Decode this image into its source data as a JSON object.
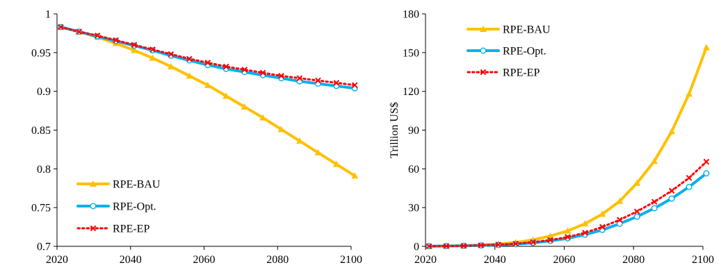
{
  "colors": {
    "bau": "#FFC000",
    "opt": "#00B0F0",
    "ep": "#FF0000"
  },
  "chart_data": [
    {
      "type": "line",
      "title": "",
      "xlabel": "",
      "ylabel": "",
      "xlim": [
        2020,
        2100
      ],
      "ylim": [
        0.7,
        1
      ],
      "xticks": [
        "2020",
        "2040",
        "2060",
        "2080",
        "2100"
      ],
      "yticks": [
        "0.7",
        "0.75",
        "0.8",
        "0.85",
        "0.9",
        "0.95",
        "1"
      ],
      "legend_position": "bottom-left",
      "grid": false,
      "x": [
        2021,
        2026,
        2031,
        2036,
        2041,
        2046,
        2051,
        2056,
        2061,
        2066,
        2071,
        2076,
        2081,
        2086,
        2091,
        2096,
        2101
      ],
      "series": [
        {
          "name": "RPE-BAU",
          "marker": "triangle",
          "values": [
            0.983,
            0.977,
            0.97,
            0.962,
            0.953,
            0.943,
            0.932,
            0.92,
            0.908,
            0.894,
            0.88,
            0.866,
            0.851,
            0.836,
            0.821,
            0.806,
            0.791
          ]
        },
        {
          "name": "RPE-Opt.",
          "marker": "circle",
          "values": [
            0.983,
            0.977,
            0.971,
            0.965,
            0.959,
            0.953,
            0.946,
            0.94,
            0.934,
            0.929,
            0.925,
            0.921,
            0.917,
            0.913,
            0.91,
            0.907,
            0.904
          ]
        },
        {
          "name": "RPE-EP",
          "marker": "cross",
          "values": [
            0.983,
            0.977,
            0.972,
            0.966,
            0.96,
            0.954,
            0.948,
            0.942,
            0.937,
            0.932,
            0.928,
            0.924,
            0.92,
            0.917,
            0.914,
            0.911,
            0.908
          ]
        }
      ]
    },
    {
      "type": "line",
      "title": "",
      "xlabel": "",
      "ylabel": "Trillion US$",
      "xlim": [
        2020,
        2100
      ],
      "ylim": [
        0,
        180
      ],
      "xticks": [
        "2020",
        "2040",
        "2060",
        "2080",
        "2100"
      ],
      "yticks": [
        "0",
        "30",
        "60",
        "90",
        "120",
        "150",
        "180"
      ],
      "legend_position": "top-left",
      "grid": false,
      "x": [
        2021,
        2026,
        2031,
        2036,
        2041,
        2046,
        2051,
        2056,
        2061,
        2066,
        2071,
        2076,
        2081,
        2086,
        2091,
        2096,
        2101
      ],
      "series": [
        {
          "name": "RPE-BAU",
          "marker": "triangle",
          "values": [
            0.1,
            0.3,
            0.6,
            1.1,
            1.8,
            3,
            5,
            8,
            12,
            17.5,
            25,
            35,
            49,
            66,
            89,
            118,
            154
          ]
        },
        {
          "name": "RPE-Opt.",
          "marker": "circle",
          "values": [
            0.1,
            0.2,
            0.4,
            0.7,
            1.1,
            1.7,
            2.7,
            4.2,
            6.2,
            9,
            12.7,
            17.5,
            23,
            29.5,
            37,
            46,
            56.5
          ]
        },
        {
          "name": "RPE-EP",
          "marker": "cross",
          "values": [
            0.1,
            0.2,
            0.4,
            0.8,
            1.3,
            2,
            3.2,
            4.9,
            7.2,
            10.5,
            15,
            20.5,
            27,
            34.5,
            43,
            53,
            65.5
          ]
        }
      ]
    }
  ]
}
